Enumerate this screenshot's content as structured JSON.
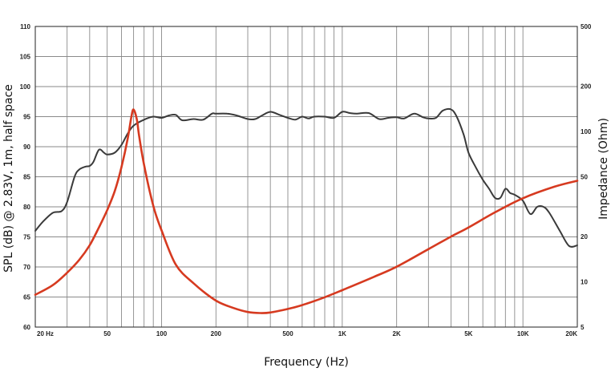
{
  "chart_data": {
    "type": "line",
    "title": "",
    "xlabel": "Frequency (Hz)",
    "ylabel": "SPL (dB) @ 2.83V, 1m, half space",
    "y2label": "Impedance (Ohm)",
    "x_scale": "log",
    "xlim": [
      20,
      20000
    ],
    "ylim": [
      60,
      110
    ],
    "y2lim": [
      5,
      500
    ],
    "y2_scale": "log",
    "grid": true,
    "legend": "none",
    "x_ticks": [
      {
        "value": 20,
        "label": "20 Hz"
      },
      {
        "value": 50,
        "label": "50"
      },
      {
        "value": 100,
        "label": "100"
      },
      {
        "value": 200,
        "label": "200"
      },
      {
        "value": 500,
        "label": "500"
      },
      {
        "value": 1000,
        "label": "1K"
      },
      {
        "value": 2000,
        "label": "2K"
      },
      {
        "value": 5000,
        "label": "5K"
      },
      {
        "value": 10000,
        "label": "10K"
      },
      {
        "value": 20000,
        "label": "20K"
      }
    ],
    "y_ticks": [
      60,
      65,
      70,
      75,
      80,
      85,
      90,
      95,
      100,
      105,
      110
    ],
    "y2_ticks": [
      5,
      10,
      20,
      50,
      100,
      200,
      500
    ],
    "series": [
      {
        "axis": "left",
        "color": "#3a3a3a",
        "x": [
          20,
          22,
          25,
          28,
          30,
          33,
          35,
          38,
          40,
          42,
          45,
          48,
          50,
          55,
          60,
          65,
          70,
          80,
          90,
          100,
          110,
          120,
          130,
          150,
          170,
          190,
          200,
          230,
          260,
          300,
          330,
          360,
          400,
          450,
          500,
          550,
          600,
          650,
          700,
          800,
          900,
          1000,
          1100,
          1200,
          1400,
          1600,
          1800,
          2000,
          2200,
          2500,
          2800,
          3000,
          3300,
          3600,
          4000,
          4300,
          4700,
          5000,
          5500,
          6000,
          6500,
          7000,
          7500,
          8000,
          8500,
          9000,
          10000,
          11000,
          12000,
          13000,
          14000,
          16000,
          18000,
          20000
        ],
        "y": [
          76,
          77.5,
          79,
          79.3,
          80.8,
          85,
          86.2,
          86.7,
          86.8,
          87.5,
          89.5,
          89,
          88.7,
          89,
          90.3,
          92.2,
          93.5,
          94.5,
          95,
          94.8,
          95.2,
          95.3,
          94.4,
          94.6,
          94.5,
          95.5,
          95.5,
          95.5,
          95.2,
          94.6,
          94.6,
          95.2,
          95.8,
          95.3,
          94.8,
          94.5,
          95,
          94.7,
          95,
          95,
          94.8,
          95.8,
          95.6,
          95.5,
          95.6,
          94.6,
          94.8,
          94.9,
          94.7,
          95.5,
          94.9,
          94.7,
          94.8,
          96,
          96.2,
          95,
          92,
          89,
          86.5,
          84.5,
          83,
          81.5,
          81.5,
          83,
          82.3,
          82,
          81,
          78.8,
          80,
          80,
          79,
          76,
          73.5,
          73.6
        ]
      },
      {
        "axis": "right",
        "color": "#d63a20",
        "x": [
          20,
          25,
          30,
          35,
          40,
          45,
          50,
          55,
          60,
          65,
          68,
          70,
          73,
          75,
          80,
          90,
          100,
          120,
          150,
          200,
          250,
          300,
          350,
          400,
          500,
          600,
          800,
          1000,
          1500,
          2000,
          3000,
          4000,
          5000,
          7000,
          10000,
          15000,
          20000
        ],
        "y": [
          8.2,
          9.5,
          11.5,
          14.0,
          17.5,
          23.0,
          30.0,
          40.0,
          58.0,
          90.0,
          125.0,
          140.0,
          120.0,
          95.0,
          60.0,
          32.0,
          22.0,
          13.0,
          9.8,
          7.5,
          6.7,
          6.3,
          6.2,
          6.25,
          6.6,
          7.0,
          7.9,
          8.8,
          10.8,
          12.6,
          16.5,
          20.0,
          23.0,
          29.0,
          36.0,
          43.0,
          47.0
        ]
      }
    ]
  }
}
